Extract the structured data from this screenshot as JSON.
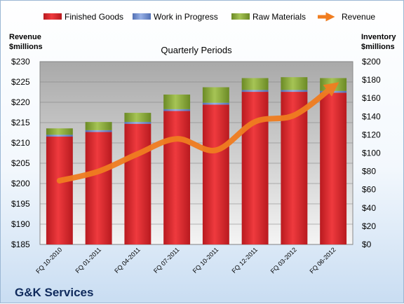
{
  "company": "G&K Services",
  "chart_data": {
    "type": "bar",
    "stacked": true,
    "subtitle": "Quarterly Periods",
    "categories": [
      "FQ 10-2010",
      "FQ 01-2011",
      "FQ 04-2011",
      "FQ 07-2011",
      "FQ 10-2011",
      "FQ 12-2011",
      "FQ 03-2012",
      "FQ 06-2012"
    ],
    "series": [
      {
        "name": "Finished Goods",
        "axis": "right",
        "color": "#d9252a",
        "values": [
          118,
          123,
          132,
          146,
          153,
          167,
          167,
          166
        ]
      },
      {
        "name": "Work in Progress",
        "axis": "right",
        "color": "#6f8fd0",
        "values": [
          2,
          2,
          2,
          2,
          2,
          2,
          2,
          2
        ]
      },
      {
        "name": "Raw Materials",
        "axis": "right",
        "color": "#8bab3a",
        "values": [
          7,
          9,
          10,
          16,
          17,
          13,
          14,
          14
        ]
      },
      {
        "name": "Revenue",
        "type": "line",
        "axis": "left",
        "color": "#f07d20",
        "values": [
          200.7,
          203.0,
          207.3,
          211.0,
          208.2,
          215.2,
          216.8,
          223.9
        ]
      }
    ],
    "left_axis": {
      "title_line1": "Revenue",
      "title_line2": "$millions",
      "min": 185,
      "max": 230,
      "step": 5,
      "ticks": [
        "$185",
        "$190",
        "$195",
        "$200",
        "$205",
        "$210",
        "$215",
        "$220",
        "$225",
        "$230"
      ]
    },
    "right_axis": {
      "title_line1": "Inventory",
      "title_line2": "$millions",
      "min": 0,
      "max": 200,
      "step": 20,
      "ticks": [
        "$0",
        "$20",
        "$40",
        "$60",
        "$80",
        "$100",
        "$120",
        "$140",
        "$160",
        "$180",
        "$200"
      ]
    },
    "legend_position": "top",
    "grid": true
  }
}
